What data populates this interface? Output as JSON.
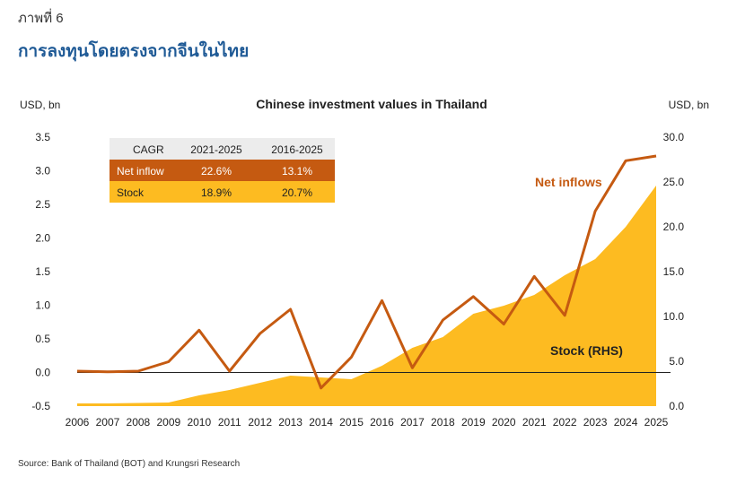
{
  "figure": {
    "label": "ภาพที่ 6",
    "title": "การลงทุนโดยตรงจากจีนในไทย",
    "source": "Source: Bank of Thailand (BOT) and Krungsri Research"
  },
  "colors": {
    "stock_fill": "#fdbb21",
    "net_line": "#c55a11",
    "table_header_bg": "#ececec",
    "title_blue": "#1f5a96"
  },
  "cagr_table": {
    "headers": [
      "CAGR",
      "2021-2025",
      "2016-2025"
    ],
    "rows": [
      {
        "label": "Net inflow",
        "a": "22.6%",
        "b": "13.1%"
      },
      {
        "label": "Stock",
        "a": "18.9%",
        "b": "20.7%"
      }
    ]
  },
  "chart_data": {
    "type": "line",
    "title": "Chinese investment values in Thailand",
    "ylabel_left": "USD, bn",
    "ylabel_right": "USD, bn",
    "ylim_left": [
      -0.5,
      3.5
    ],
    "ylim_right": [
      0.0,
      30.0
    ],
    "yticks_left": [
      "3.5",
      "3.0",
      "2.5",
      "2.0",
      "1.5",
      "1.0",
      "0.5",
      "0.0",
      "-0.5"
    ],
    "yticks_right": [
      "30.0",
      "25.0",
      "20.0",
      "15.0",
      "10.0",
      "5.0",
      "0.0"
    ],
    "categories": [
      "2006",
      "2007",
      "2008",
      "2009",
      "2010",
      "2011",
      "2012",
      "2013",
      "2014",
      "2015",
      "2016",
      "2017",
      "2018",
      "2019",
      "2020",
      "2021",
      "2022",
      "2023",
      "2024",
      "2025"
    ],
    "series": [
      {
        "name": "Net inflows",
        "axis": "left",
        "style": "line",
        "values": [
          0.02,
          0.01,
          0.02,
          0.16,
          0.63,
          0.02,
          0.58,
          0.94,
          -0.23,
          0.23,
          1.07,
          0.07,
          0.78,
          1.13,
          0.72,
          1.43,
          0.85,
          2.4,
          3.15,
          3.22
        ]
      },
      {
        "name": "Stock (RHS)",
        "axis": "right",
        "style": "area",
        "values": [
          0.3,
          0.3,
          0.35,
          0.4,
          1.2,
          1.8,
          2.6,
          3.4,
          3.2,
          3.0,
          4.5,
          6.5,
          7.7,
          10.3,
          11.2,
          12.4,
          14.6,
          16.4,
          20.0,
          24.6
        ]
      }
    ],
    "annotations": [
      "Net inflows",
      "Stock (RHS)"
    ],
    "grid": false,
    "zero_line": true
  }
}
